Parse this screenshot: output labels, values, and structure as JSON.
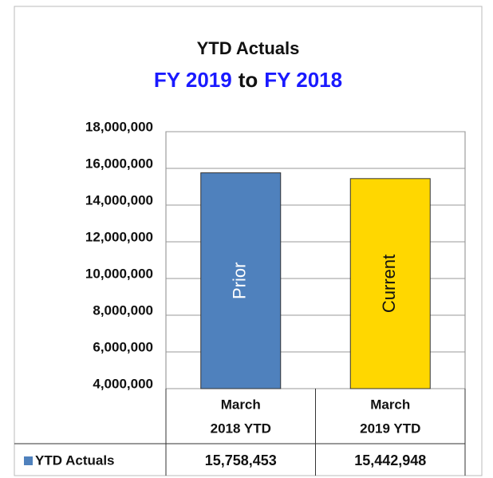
{
  "chart_data": {
    "type": "bar",
    "title": "YTD Actuals",
    "subtitle_parts": [
      {
        "text": "FY 2019",
        "color": "#1a1aff"
      },
      {
        "text": "to",
        "color": "#111111"
      },
      {
        "text": "FY 2018",
        "color": "#1a1aff"
      }
    ],
    "categories": [
      [
        "March",
        "2018 YTD"
      ],
      [
        "March",
        "2019 YTD"
      ]
    ],
    "bar_labels": [
      "Prior",
      "Current"
    ],
    "series": [
      {
        "name": "YTD Actuals",
        "color": "#4f81bd",
        "colors": [
          "#4f81bd",
          "#ffd700"
        ],
        "values": [
          15758453,
          15442948
        ],
        "value_labels": [
          "15,758,453",
          "15,442,948"
        ]
      }
    ],
    "ylim": [
      4000000,
      18000000
    ],
    "yticks": [
      {
        "value": 4000000,
        "label": "4,000,000"
      },
      {
        "value": 6000000,
        "label": "6,000,000"
      },
      {
        "value": 8000000,
        "label": "8,000,000"
      },
      {
        "value": 10000000,
        "label": "10,000,000"
      },
      {
        "value": 12000000,
        "label": "12,000,000"
      },
      {
        "value": 14000000,
        "label": "14,000,000"
      },
      {
        "value": 16000000,
        "label": "16,000,000"
      },
      {
        "value": 18000000,
        "label": "18,000,000"
      }
    ],
    "grid": true
  }
}
